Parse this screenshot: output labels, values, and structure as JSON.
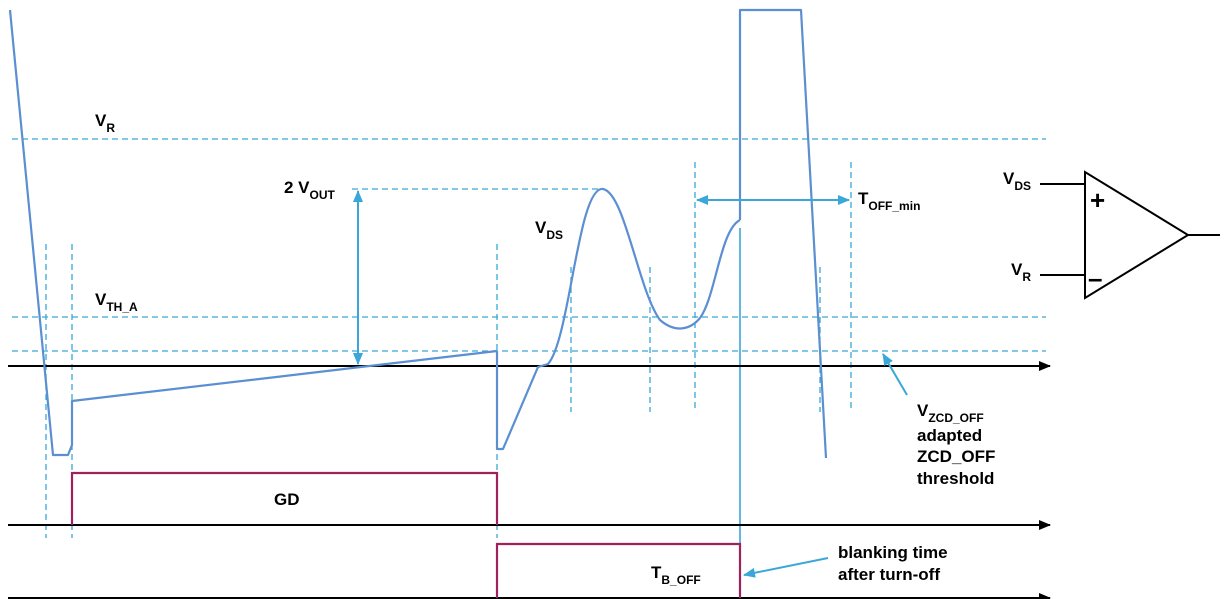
{
  "colors": {
    "signal": "#5b8fd1",
    "dashed": "#3aa7d8",
    "arrow": "#3aa7d8",
    "gate": "#a0225d",
    "axis": "#000000"
  },
  "labels": {
    "vr": {
      "main": "V",
      "sub": "R"
    },
    "vth": {
      "main": "V",
      "sub": "TH_A"
    },
    "vout": {
      "main": "2 V",
      "sub": "OUT"
    },
    "vds": {
      "main": "V",
      "sub": "DS"
    },
    "toff": {
      "main": "T",
      "sub": "OFF_min"
    },
    "vzcd": {
      "main": "V",
      "sub": "ZCD_OFF"
    },
    "vzcd_line2": "adapted",
    "vzcd_line3": "ZCD_OFF",
    "vzcd_line4": "threshold",
    "gd": "GD",
    "tboff": {
      "main": "T",
      "sub": "B_OFF"
    },
    "blank_line1": "blanking time",
    "blank_line2": "after turn-off",
    "comp_vds": {
      "main": "V",
      "sub": "DS"
    },
    "comp_vr": {
      "main": "V",
      "sub": "R"
    },
    "plus": "+",
    "minus": "–"
  }
}
